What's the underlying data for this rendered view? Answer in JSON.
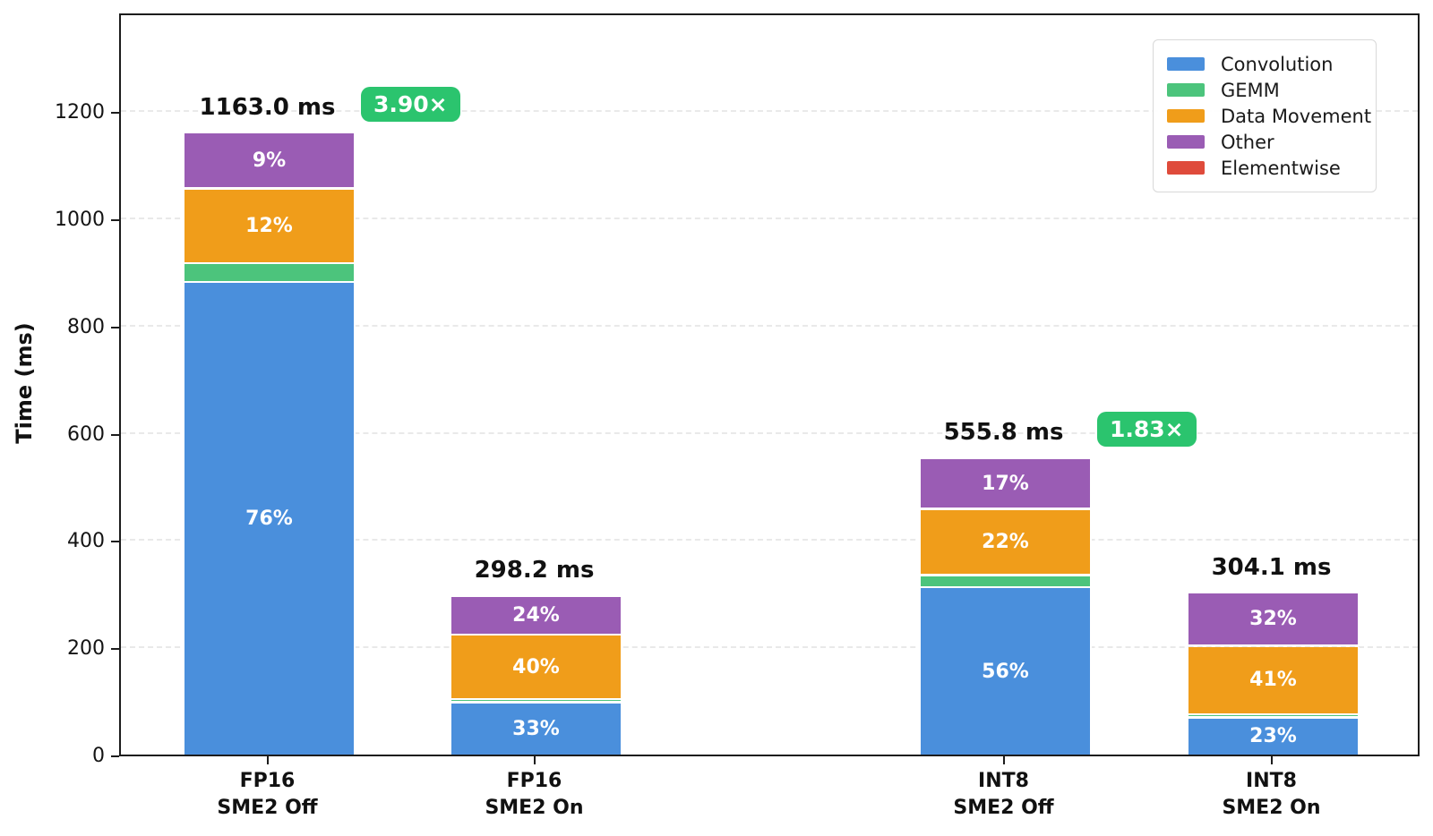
{
  "figure": {
    "background": "#ffffff",
    "axis_color": "#1c1c1c",
    "grid_color": "#e9e9e9",
    "text_color": "#111111",
    "badge_color": "#2bc46e",
    "badge_text_color": "#ffffff"
  },
  "chart_data": {
    "type": "bar",
    "stacked": true,
    "title": "",
    "xlabel": "",
    "ylabel": "Time (ms)",
    "ylim": [
      0,
      1386
    ],
    "yticks": [
      0,
      200,
      400,
      600,
      800,
      1000,
      1200
    ],
    "ytick_labels": [
      "0",
      "200",
      "400",
      "600",
      "800",
      "1000",
      "1200"
    ],
    "grid": "horizontal dashed",
    "legend_position": "upper right",
    "categories": [
      "FP16\nSME2 Off",
      "FP16\nSME2 On",
      "INT8\nSME2 Off",
      "INT8\nSME2 On"
    ],
    "categories_lines": [
      [
        "FP16",
        "SME2 Off"
      ],
      [
        "FP16",
        "SME2 On"
      ],
      [
        "INT8",
        "SME2 Off"
      ],
      [
        "INT8",
        "SME2 On"
      ]
    ],
    "totals_ms": [
      1163.0,
      298.2,
      555.8,
      304.1
    ],
    "total_labels": [
      "1163.0 ms",
      "298.2 ms",
      "555.8 ms",
      "304.1 ms"
    ],
    "speedups": [
      {
        "bar_index": 0,
        "label": "3.90×",
        "value": 3.9
      },
      {
        "bar_index": 2,
        "label": "1.83×",
        "value": 1.83
      }
    ],
    "series": [
      {
        "name": "Convolution",
        "color": "#4a8fdc",
        "pct": [
          76,
          33,
          56,
          23
        ],
        "pct_labels": [
          "76%",
          "33%",
          "56%",
          "23%"
        ]
      },
      {
        "name": "GEMM",
        "color": "#4cc47c",
        "pct": [
          3,
          2,
          4,
          2
        ],
        "pct_labels": [
          "",
          "",
          "",
          ""
        ]
      },
      {
        "name": "Data Movement",
        "color": "#f09d1a",
        "pct": [
          12,
          40,
          22,
          41
        ],
        "pct_labels": [
          "12%",
          "40%",
          "22%",
          "41%"
        ]
      },
      {
        "name": "Other",
        "color": "#9a5cb4",
        "pct": [
          9,
          24,
          17,
          32
        ],
        "pct_labels": [
          "9%",
          "24%",
          "17%",
          "32%"
        ]
      },
      {
        "name": "Elementwise",
        "color": "#df4b3b",
        "pct": [
          0,
          0,
          0,
          0
        ],
        "pct_labels": [
          "",
          "",
          "",
          ""
        ]
      }
    ],
    "legend_items": [
      "Convolution",
      "GEMM",
      "Data Movement",
      "Other",
      "Elementwise"
    ]
  }
}
